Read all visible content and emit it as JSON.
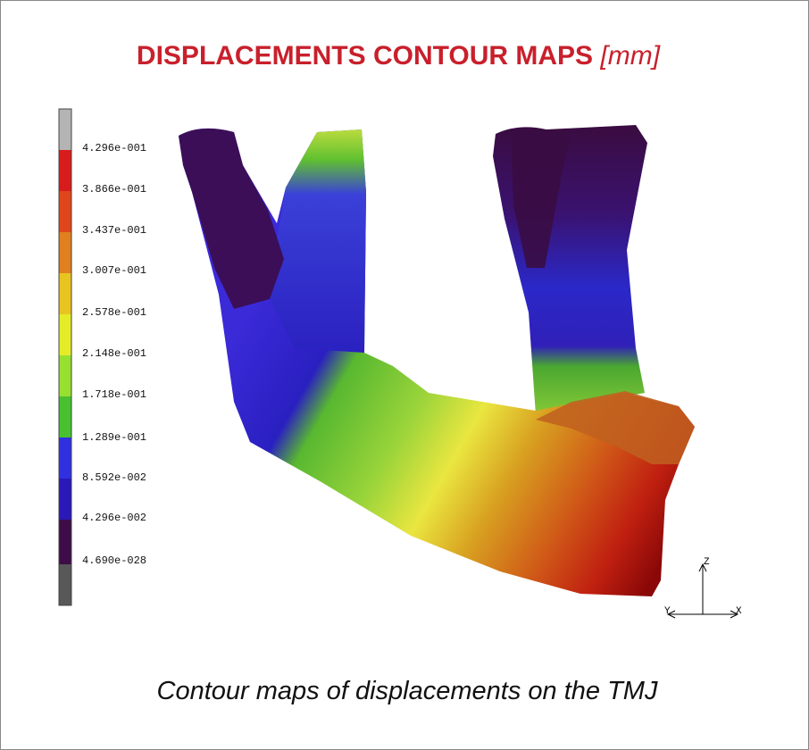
{
  "title": {
    "text": "DISPLACEMENTS CONTOUR MAPS",
    "unit": "[mm]"
  },
  "legend": {
    "labels": [
      "4.296e-001",
      "3.866e-001",
      "3.437e-001",
      "3.007e-001",
      "2.578e-001",
      "2.148e-001",
      "1.718e-001",
      "1.289e-001",
      "8.592e-002",
      "4.296e-002",
      "4.690e-028"
    ]
  },
  "axes": {
    "z": "Z",
    "y": "Y",
    "x": "X"
  },
  "caption": "Contour maps of displacements on the TMJ"
}
